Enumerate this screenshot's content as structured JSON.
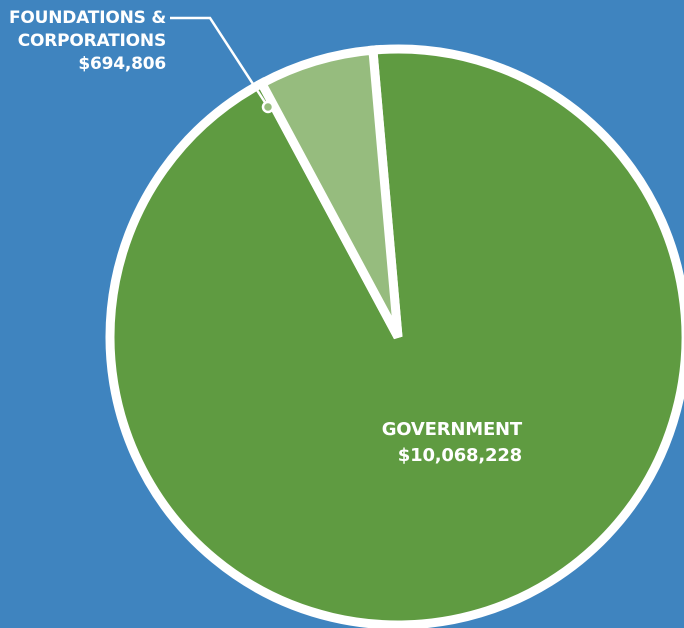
{
  "colors": {
    "background": "#3f84bf",
    "government": "#5f9b41",
    "foundations": "#96bc7e",
    "outline": "#ffffff"
  },
  "chart_data": {
    "type": "pie",
    "slices": [
      {
        "label": "GOVERNMENT",
        "value": 10068228,
        "value_text": "$10,068,228"
      },
      {
        "label": "FOUNDATIONS & CORPORATIONS",
        "value": 694806,
        "value_text": "$694,806",
        "label_lines": [
          "FOUNDATIONS &",
          "CORPORATIONS"
        ]
      }
    ]
  }
}
